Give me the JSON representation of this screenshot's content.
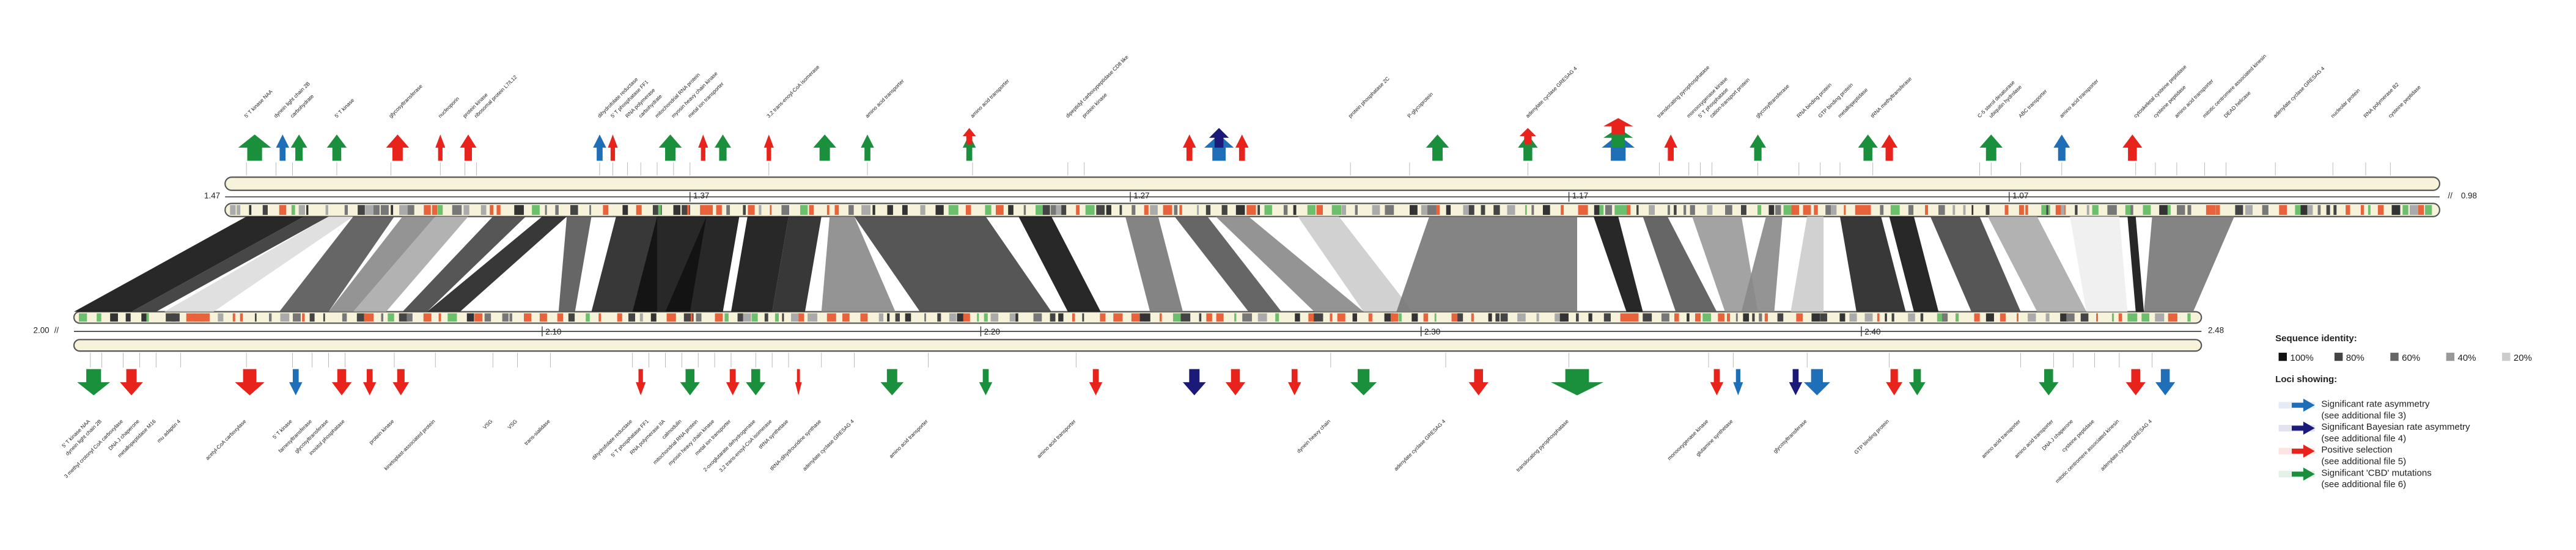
{
  "top_genome": {
    "start_label": "1.47",
    "end_label": "0.98",
    "ticks": [
      "1.37",
      "1.27",
      "1.17",
      "1.07"
    ],
    "genes": [
      "5' T kinase NAA",
      "dynein light chain 2B",
      "carbohydrate",
      "5' T kinase",
      "glycosyltransferase",
      "nucleoporin",
      "protein kinase",
      "ribosomal protein L7/L12",
      "dihydrofolate reductase",
      "5' T phosphatase FF1",
      "RNA polymerase",
      "carbohydrate",
      "mitochondrial RNA protein",
      "myosin heavy chain kinase",
      "metal ion transporter",
      "3,2 trans-enoyl-CoA isomerase",
      "amino acid transporter",
      "amino acid transporter",
      "dipeptidyl carboxypeptidase CD8 like",
      "protein kinase",
      "protein phosphatase 2C",
      "P-glycoprotein",
      "adenylate cyclase GRESAG 4",
      "translocating pyrophosphatase",
      "monooxygenase kinase",
      "5' T phosphatase",
      "cation-transport protein",
      "glycosyltransferase",
      "RNA binding protein",
      "GTP binding protein",
      "metallopeptidase",
      "tRNA methyltransferase",
      "C-5 sterol desaturase",
      "ubiquitin hydrolase",
      "ABC transporter",
      "amino acid transporter",
      "cytoskeletal cysteine peptidase",
      "cysteine peptidase",
      "amino acid transporter",
      "mitotic centromere associated kinesin",
      "DEAD helicase",
      "adenylate cyclase GRESAG 4",
      "nucleolar protein",
      "RNA polymerase B2",
      "cysteine peptidase"
    ]
  },
  "bottom_genome": {
    "start_label": "2.00",
    "end_label": "2.48",
    "ticks": [
      "2.10",
      "2.20",
      "2.30",
      "2.40"
    ],
    "genes": [
      "5' T kinase NAA",
      "dynein light chain 2B",
      "3 methyl crotonyl CoA carboxylase",
      "DNA J chaperone",
      "metallopeptidase M16",
      "mu adaptin 4",
      "acetyl-CoA carboxylase",
      "5' T kinase",
      "farnesyltransferase",
      "glycosyltransferase",
      "inositol phosphatase",
      "protein kinase",
      "kinetoplast-associated protein",
      "VSG",
      "VSG",
      "trans-sialidase",
      "dihydrofolate reductase",
      "5' T phosphatase FF1",
      "RNA polymerase IIA",
      "calmodulin",
      "mitochondrial RNA protein",
      "myosin heavy chain kinase",
      "metal ion transporter",
      "2-oxoglutarate dehydrogenase",
      "3,2 trans-enoyl-CoA isomerase",
      "tRNA synthetase",
      "tRNA-dihydrouridine synthase",
      "adenylate cyclase GRESAG 4",
      "amino acid transporter",
      "amino acid transporter",
      "dynein heavy chain",
      "adenylate cyclase GRESAG 4",
      "translocating pyrophosphatase",
      "monooxygenase kinase",
      "glutamine synthetase",
      "glycosyltransferase",
      "GTP binding protein",
      "amino acid transporter",
      "amino acid transporter",
      "DNA J chaperone",
      "cysteine peptidase",
      "mitotic centromere associated kinesin",
      "adenylate cyclase GRESAG 4"
    ]
  },
  "legend": {
    "identity_title": "Sequence identity:",
    "identity_levels": [
      "100%",
      "80%",
      "60%",
      "40%",
      "20%"
    ],
    "loci_title": "Loci showing:",
    "loci": [
      {
        "label": "Significant rate asymmetry",
        "note": "(see additional file 3)"
      },
      {
        "label": "Significant Bayesian rate asymmetry",
        "note": "(see additional file 4)"
      },
      {
        "label": "Positive selection",
        "note": "(see additional file 5)"
      },
      {
        "label": "Significant 'CBD' mutations",
        "note": "(see additional file 6)"
      }
    ]
  }
}
